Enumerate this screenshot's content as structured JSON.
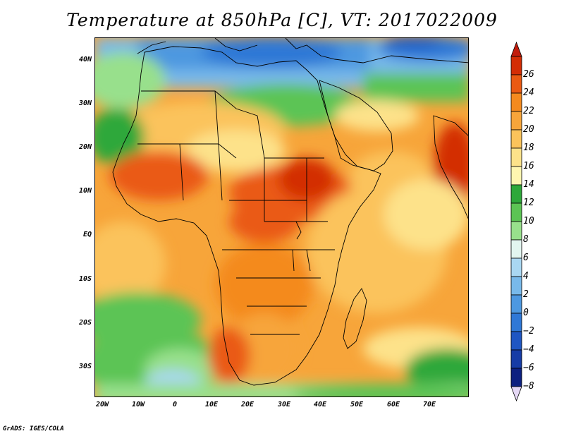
{
  "title": "Temperature at 850hPa [C], VT: 2017022009",
  "credit": "GrADS: IGES/COLA",
  "map": {
    "projection": "lat-lon",
    "lon_range": [
      -22,
      81
    ],
    "lat_range": [
      -37,
      45
    ],
    "lat_labels": [
      {
        "lat": 40,
        "text": "40N"
      },
      {
        "lat": 30,
        "text": "30N"
      },
      {
        "lat": 20,
        "text": "20N"
      },
      {
        "lat": 10,
        "text": "10N"
      },
      {
        "lat": 0,
        "text": "EQ"
      },
      {
        "lat": -10,
        "text": "10S"
      },
      {
        "lat": -20,
        "text": "20S"
      },
      {
        "lat": -30,
        "text": "30S"
      }
    ],
    "lon_labels": [
      {
        "lon": -20,
        "text": "20W"
      },
      {
        "lon": -10,
        "text": "10W"
      },
      {
        "lon": 0,
        "text": "0"
      },
      {
        "lon": 10,
        "text": "10E"
      },
      {
        "lon": 20,
        "text": "20E"
      },
      {
        "lon": 30,
        "text": "30E"
      },
      {
        "lon": 40,
        "text": "40E"
      },
      {
        "lon": 50,
        "text": "50E"
      },
      {
        "lon": 60,
        "text": "60E"
      },
      {
        "lon": 70,
        "text": "70E"
      }
    ]
  },
  "colorbar": {
    "levels": [
      "26",
      "24",
      "22",
      "20",
      "18",
      "16",
      "14",
      "12",
      "10",
      "8",
      "6",
      "4",
      "2",
      "0",
      "−2",
      "−4",
      "−6",
      "−8"
    ],
    "colors_top_to_bottom": [
      "#d32d05",
      "#ea5a12",
      "#f48a1e",
      "#f7a53a",
      "#fbc35b",
      "#fde28a",
      "#fff6b0",
      "#2ea83a",
      "#5cc454",
      "#98e08c",
      "#e2f5f0",
      "#a9d7f2",
      "#78b9ea",
      "#4d98e0",
      "#2f78d6",
      "#1f56c2",
      "#163ca6",
      "#0d2080"
    ],
    "over_color": "#c21c0c",
    "under_color": "#e5d8f5"
  }
}
